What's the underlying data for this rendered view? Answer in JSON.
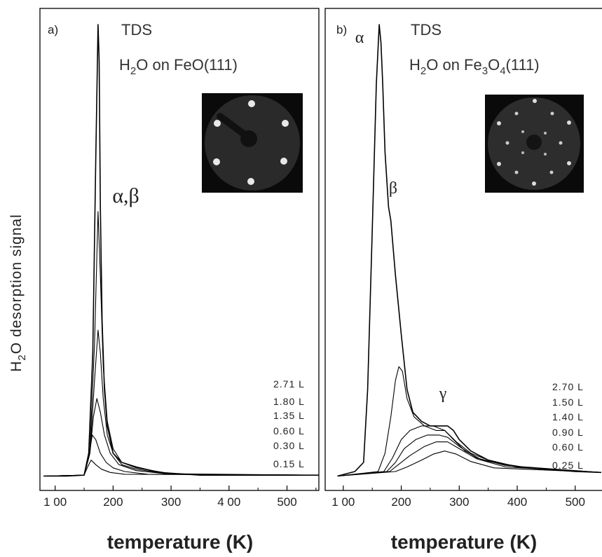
{
  "ylabel_parts": [
    "H",
    "2",
    "O desorption signal"
  ],
  "xlabel": "temperature (K)",
  "chart_data": [
    {
      "type": "line",
      "panel_label": "a)",
      "method": "TDS",
      "system_parts": [
        {
          "text": "H",
          "sub": false
        },
        {
          "text": "2",
          "sub": true
        },
        {
          "text": "O on FeO(111)",
          "sub": false
        }
      ],
      "peak_annotations": [
        {
          "text": "α,β",
          "x": 222,
          "y": 0.61
        }
      ],
      "xlabel": "temperature (K)",
      "ylabel": "H2O desorption signal",
      "xlim": [
        75,
        555
      ],
      "ylim": [
        0,
        1
      ],
      "x_ticks": [
        100,
        200,
        300,
        400,
        500
      ],
      "x_tick_labels": [
        "1 00",
        "200",
        "300",
        "4 00",
        "500"
      ],
      "legend_labels": [
        "2.71 L",
        "1.80 L",
        "1.35 L",
        "0.60 L",
        "0.30 L",
        "0.15 L"
      ],
      "series": [
        {
          "name": "2.71 L",
          "x": [
            80,
            120,
            150,
            158,
            165,
            170,
            174,
            176,
            178,
            181,
            185,
            190,
            200,
            215,
            240,
            280,
            350,
            450,
            555
          ],
          "y": [
            0.01,
            0.01,
            0.012,
            0.06,
            0.28,
            0.7,
            1.0,
            0.92,
            0.6,
            0.35,
            0.2,
            0.12,
            0.06,
            0.04,
            0.03,
            0.018,
            0.012,
            0.012,
            0.012
          ]
        },
        {
          "name": "1.80 L",
          "x": [
            80,
            150,
            160,
            168,
            174,
            178,
            183,
            190,
            200,
            215,
            240,
            300,
            555
          ],
          "y": [
            0.01,
            0.012,
            0.07,
            0.3,
            0.59,
            0.45,
            0.25,
            0.13,
            0.07,
            0.04,
            0.028,
            0.015,
            0.012
          ]
        },
        {
          "name": "1.35 L",
          "x": [
            80,
            150,
            160,
            168,
            174,
            178,
            183,
            190,
            200,
            215,
            240,
            300,
            555
          ],
          "y": [
            0.01,
            0.012,
            0.06,
            0.22,
            0.33,
            0.28,
            0.18,
            0.1,
            0.06,
            0.035,
            0.025,
            0.014,
            0.012
          ]
        },
        {
          "name": "0.60 L",
          "x": [
            80,
            150,
            160,
            166,
            172,
            178,
            185,
            195,
            210,
            240,
            300,
            555
          ],
          "y": [
            0.01,
            0.012,
            0.06,
            0.14,
            0.18,
            0.15,
            0.1,
            0.06,
            0.035,
            0.022,
            0.014,
            0.012
          ]
        },
        {
          "name": "0.30 L",
          "x": [
            80,
            150,
            158,
            164,
            170,
            178,
            188,
            200,
            220,
            260,
            555
          ],
          "y": [
            0.01,
            0.012,
            0.05,
            0.1,
            0.09,
            0.06,
            0.04,
            0.028,
            0.02,
            0.014,
            0.012
          ]
        },
        {
          "name": "0.15 L",
          "x": [
            80,
            150,
            156,
            162,
            170,
            180,
            195,
            220,
            555
          ],
          "y": [
            0.01,
            0.012,
            0.03,
            0.045,
            0.035,
            0.025,
            0.018,
            0.014,
            0.012
          ]
        }
      ],
      "line_color": "#000000"
    },
    {
      "type": "line",
      "panel_label": "b)",
      "method": "TDS",
      "system_parts": [
        {
          "text": "H",
          "sub": false
        },
        {
          "text": "2",
          "sub": true
        },
        {
          "text": "O on Fe",
          "sub": false
        },
        {
          "text": "3",
          "sub": true
        },
        {
          "text": "O",
          "sub": false
        },
        {
          "text": "4",
          "sub": true
        },
        {
          "text": "(111)",
          "sub": false
        }
      ],
      "peak_annotations": [
        {
          "text": "α",
          "x": 128,
          "y": 0.96
        },
        {
          "text": "β",
          "x": 186,
          "y": 0.63
        },
        {
          "text": "γ",
          "x": 272,
          "y": 0.18
        }
      ],
      "xlabel": "temperature (K)",
      "ylabel": "H2O desorption signal",
      "xlim": [
        70,
        545
      ],
      "ylim": [
        0,
        1
      ],
      "x_ticks": [
        100,
        200,
        300,
        400,
        500
      ],
      "x_tick_labels": [
        "1 00",
        "200",
        "300",
        "400",
        "500"
      ],
      "legend_labels": [
        "2.70 L",
        "1.50 L",
        "1.40 L",
        "0.90 L",
        "0.60 L",
        "0.25 L"
      ],
      "series": [
        {
          "name": "2.70 L",
          "x": [
            90,
            120,
            135,
            142,
            150,
            157,
            162,
            165,
            168,
            172,
            178,
            182,
            190,
            200,
            210,
            220,
            235,
            250,
            265,
            280,
            290,
            300,
            320,
            350,
            400,
            450,
            500,
            545
          ],
          "y": [
            0.01,
            0.02,
            0.04,
            0.2,
            0.55,
            0.87,
            1.0,
            0.96,
            0.87,
            0.72,
            0.6,
            0.57,
            0.45,
            0.32,
            0.2,
            0.15,
            0.13,
            0.12,
            0.12,
            0.12,
            0.11,
            0.09,
            0.065,
            0.045,
            0.03,
            0.025,
            0.02,
            0.018
          ]
        },
        {
          "name": "1.50 L",
          "x": [
            90,
            160,
            172,
            182,
            190,
            196,
            202,
            210,
            222,
            240,
            260,
            275,
            290,
            310,
            340,
            400,
            545
          ],
          "y": [
            0.01,
            0.02,
            0.06,
            0.14,
            0.22,
            0.25,
            0.24,
            0.18,
            0.14,
            0.12,
            0.11,
            0.11,
            0.09,
            0.065,
            0.045,
            0.03,
            0.018
          ]
        },
        {
          "name": "1.40 L",
          "x": [
            90,
            170,
            185,
            200,
            215,
            235,
            255,
            275,
            295,
            320,
            360,
            420,
            545
          ],
          "y": [
            0.01,
            0.02,
            0.05,
            0.09,
            0.11,
            0.12,
            0.12,
            0.11,
            0.085,
            0.06,
            0.04,
            0.028,
            0.018
          ]
        },
        {
          "name": "0.90 L",
          "x": [
            90,
            175,
            190,
            205,
            225,
            245,
            265,
            280,
            300,
            330,
            380,
            545
          ],
          "y": [
            0.01,
            0.02,
            0.04,
            0.07,
            0.09,
            0.1,
            0.1,
            0.095,
            0.075,
            0.05,
            0.033,
            0.018
          ]
        },
        {
          "name": "0.60 L",
          "x": [
            90,
            180,
            195,
            215,
            240,
            260,
            280,
            300,
            330,
            380,
            545
          ],
          "y": [
            0.01,
            0.02,
            0.035,
            0.055,
            0.075,
            0.085,
            0.085,
            0.07,
            0.048,
            0.03,
            0.018
          ]
        },
        {
          "name": "0.25 L",
          "x": [
            90,
            190,
            210,
            235,
            255,
            275,
            295,
            320,
            360,
            545
          ],
          "y": [
            0.01,
            0.02,
            0.03,
            0.045,
            0.058,
            0.065,
            0.058,
            0.042,
            0.028,
            0.018
          ]
        }
      ],
      "line_color": "#000000"
    }
  ]
}
